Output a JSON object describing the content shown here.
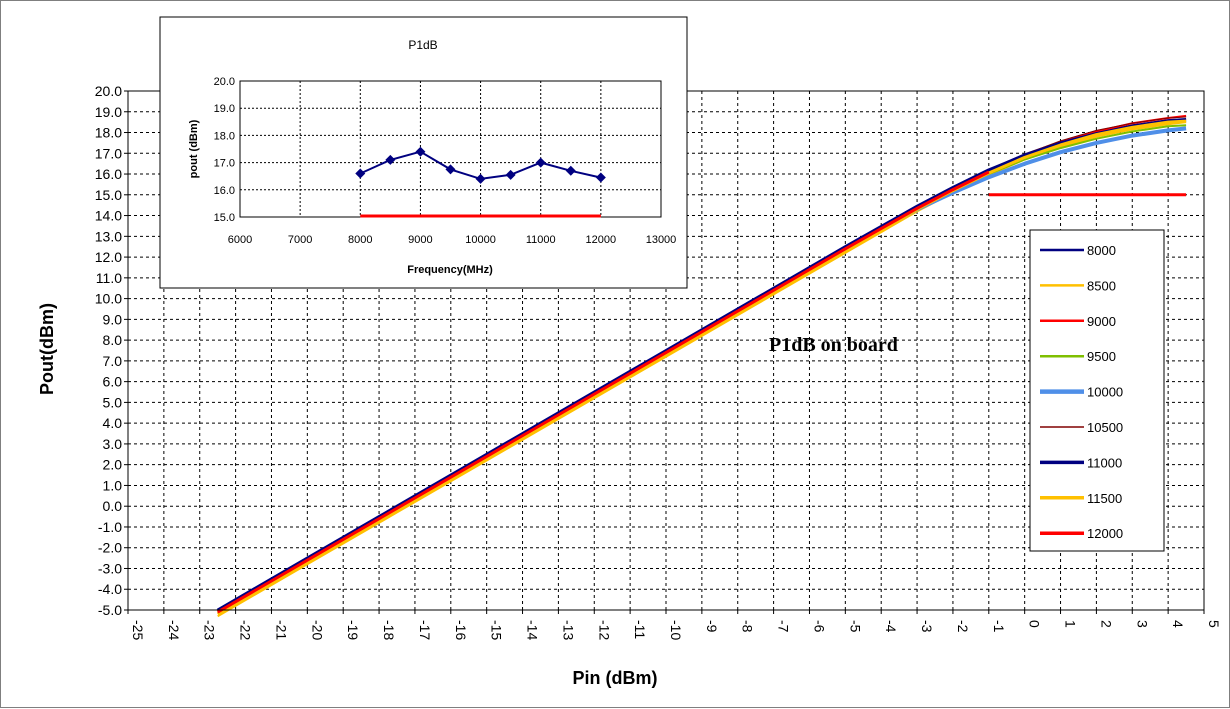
{
  "chart_data": [
    {
      "id": "main",
      "type": "line",
      "title": "",
      "annotation": "P1dB on board",
      "xlabel": "Pin (dBm)",
      "ylabel": "Pout(dBm)",
      "xlim": [
        -25,
        5
      ],
      "ylim": [
        -5,
        20
      ],
      "xticks": [
        -25,
        -24,
        -23,
        -22,
        -21,
        -20,
        -19,
        -18,
        -17,
        -16,
        -15,
        -14,
        -13,
        -12,
        -11,
        -10,
        -9,
        -8,
        -7,
        -6,
        -5,
        -4,
        -3,
        -2,
        -1,
        0,
        1,
        2,
        3,
        4,
        5
      ],
      "yticks": [
        -5.0,
        -4.0,
        -3.0,
        -2.0,
        -1.0,
        0.0,
        1.0,
        2.0,
        3.0,
        4.0,
        5.0,
        6.0,
        7.0,
        8.0,
        9.0,
        10.0,
        11.0,
        12.0,
        13.0,
        14.0,
        15.0,
        16.0,
        17.0,
        18.0,
        19.0,
        20.0
      ],
      "grid": true,
      "legend_position": "right",
      "series": [
        {
          "name": "8000",
          "color": "#000080",
          "width": 2,
          "x": [
            -22.5,
            -20,
            -17.5,
            -15,
            -12.5,
            -10,
            -7.5,
            -5,
            -3,
            -2,
            -1,
            0,
            1,
            2,
            3,
            4,
            4.5
          ],
          "y": [
            -5.0,
            -2.5,
            0.0,
            2.5,
            5.0,
            7.5,
            10.0,
            12.5,
            14.45,
            15.35,
            16.2,
            16.95,
            17.55,
            18.0,
            18.35,
            18.6,
            18.65
          ]
        },
        {
          "name": "8500",
          "color": "#FFC000",
          "width": 2,
          "x": [
            -22.5,
            -20,
            -17.5,
            -15,
            -12.5,
            -10,
            -7.5,
            -5,
            -3,
            -2,
            -1,
            0,
            1,
            2,
            3,
            4,
            4.5
          ],
          "y": [
            -5.3,
            -2.8,
            -0.3,
            2.2,
            4.7,
            7.2,
            9.7,
            12.2,
            14.2,
            15.1,
            15.95,
            16.7,
            17.3,
            17.8,
            18.15,
            18.4,
            18.5
          ]
        },
        {
          "name": "9000",
          "color": "#FF0000",
          "width": 2,
          "x": [
            -22.5,
            -20,
            -17.5,
            -15,
            -12.5,
            -10,
            -7.5,
            -5,
            -3,
            -2,
            -1,
            0,
            1,
            2,
            3,
            4,
            4.5
          ],
          "y": [
            -5.15,
            -2.65,
            -0.15,
            2.35,
            4.85,
            7.35,
            9.85,
            12.35,
            14.35,
            15.25,
            16.1,
            16.9,
            17.55,
            18.05,
            18.45,
            18.7,
            18.8
          ]
        },
        {
          "name": "9500",
          "color": "#7FBF00",
          "width": 2,
          "x": [
            -22.5,
            -20,
            -17.5,
            -15,
            -12.5,
            -10,
            -7.5,
            -5,
            -3,
            -2,
            -1,
            0,
            1,
            2,
            3,
            4,
            4.5
          ],
          "y": [
            -5.1,
            -2.6,
            -0.1,
            2.4,
            4.9,
            7.4,
            9.9,
            12.4,
            14.35,
            15.2,
            16.0,
            16.7,
            17.25,
            17.7,
            18.05,
            18.3,
            18.35
          ]
        },
        {
          "name": "10000",
          "color": "#4F8FE8",
          "width": 4,
          "x": [
            -22.5,
            -20,
            -17.5,
            -15,
            -12.5,
            -10,
            -7.5,
            -5,
            -3,
            -2,
            -1,
            0,
            1,
            2,
            3,
            4,
            4.5
          ],
          "y": [
            -5.05,
            -2.55,
            -0.05,
            2.45,
            4.95,
            7.45,
            9.95,
            12.4,
            14.3,
            15.1,
            15.85,
            16.5,
            17.05,
            17.5,
            17.85,
            18.1,
            18.2
          ]
        },
        {
          "name": "10500",
          "color": "#800000",
          "width": 1,
          "x": [
            -22.5,
            -20,
            -17.5,
            -15,
            -12.5,
            -10,
            -7.5,
            -5,
            -3,
            -2,
            -1,
            0,
            1,
            2,
            3,
            4,
            4.5
          ],
          "y": [
            -5.0,
            -2.5,
            0.0,
            2.5,
            5.0,
            7.5,
            10.0,
            12.5,
            14.45,
            15.35,
            16.2,
            16.95,
            17.6,
            18.1,
            18.45,
            18.7,
            18.75
          ]
        },
        {
          "name": "11000",
          "color": "#000080",
          "width": 3,
          "x": [
            -22.5,
            -20,
            -17.5,
            -15,
            -12.5,
            -10,
            -7.5,
            -5,
            -3,
            -2,
            -1,
            0,
            1,
            2,
            3,
            4,
            4.5
          ],
          "y": [
            -5.0,
            -2.5,
            0.0,
            2.5,
            5.0,
            7.5,
            10.0,
            12.5,
            14.45,
            15.35,
            16.2,
            16.9,
            17.5,
            17.95,
            18.3,
            18.55,
            18.6
          ]
        },
        {
          "name": "11500",
          "color": "#FFC000",
          "width": 3,
          "x": [
            -22.5,
            -20,
            -17.5,
            -15,
            -12.5,
            -10,
            -7.5,
            -5,
            -3,
            -2,
            -1,
            0,
            1,
            2,
            3,
            4,
            4.5
          ],
          "y": [
            -5.2,
            -2.7,
            -0.2,
            2.3,
            4.8,
            7.3,
            9.8,
            12.3,
            14.3,
            15.2,
            16.05,
            16.8,
            17.4,
            17.9,
            18.25,
            18.5,
            18.55
          ]
        },
        {
          "name": "12000",
          "color": "#FF0000",
          "width": 3,
          "x": [
            -22.5,
            -20,
            -17.5,
            -15,
            -12.5,
            -10,
            -7.5,
            -5,
            -3,
            -2,
            -1
          ],
          "y": [
            -5.1,
            -2.6,
            -0.1,
            2.4,
            4.9,
            7.4,
            9.9,
            12.4,
            14.35,
            15.25,
            16.1
          ]
        }
      ],
      "reference_line": {
        "color": "#FF0000",
        "x": [
          -1.0,
          4.5
        ],
        "y": [
          15.0,
          15.0
        ]
      }
    },
    {
      "id": "inset",
      "type": "line",
      "title": "P1dB",
      "xlabel": "Frequency(MHz)",
      "ylabel": "pout (dBm)",
      "xlim": [
        6000,
        13000
      ],
      "ylim": [
        15.0,
        20.0
      ],
      "xticks": [
        6000,
        7000,
        8000,
        9000,
        10000,
        11000,
        12000,
        13000
      ],
      "yticks": [
        15.0,
        16.0,
        17.0,
        18.0,
        19.0,
        20.0
      ],
      "grid": true,
      "series": [
        {
          "name": "P1dB",
          "color": "#000080",
          "marker": "diamond",
          "x": [
            8000,
            8500,
            9000,
            9500,
            10000,
            10500,
            11000,
            11500,
            12000
          ],
          "y": [
            16.6,
            17.1,
            17.4,
            16.75,
            16.4,
            16.55,
            17.0,
            16.7,
            16.45
          ]
        }
      ],
      "reference_line": {
        "color": "#FF0000",
        "x": [
          8000,
          12000
        ],
        "y": [
          15.0,
          15.0
        ]
      }
    }
  ]
}
